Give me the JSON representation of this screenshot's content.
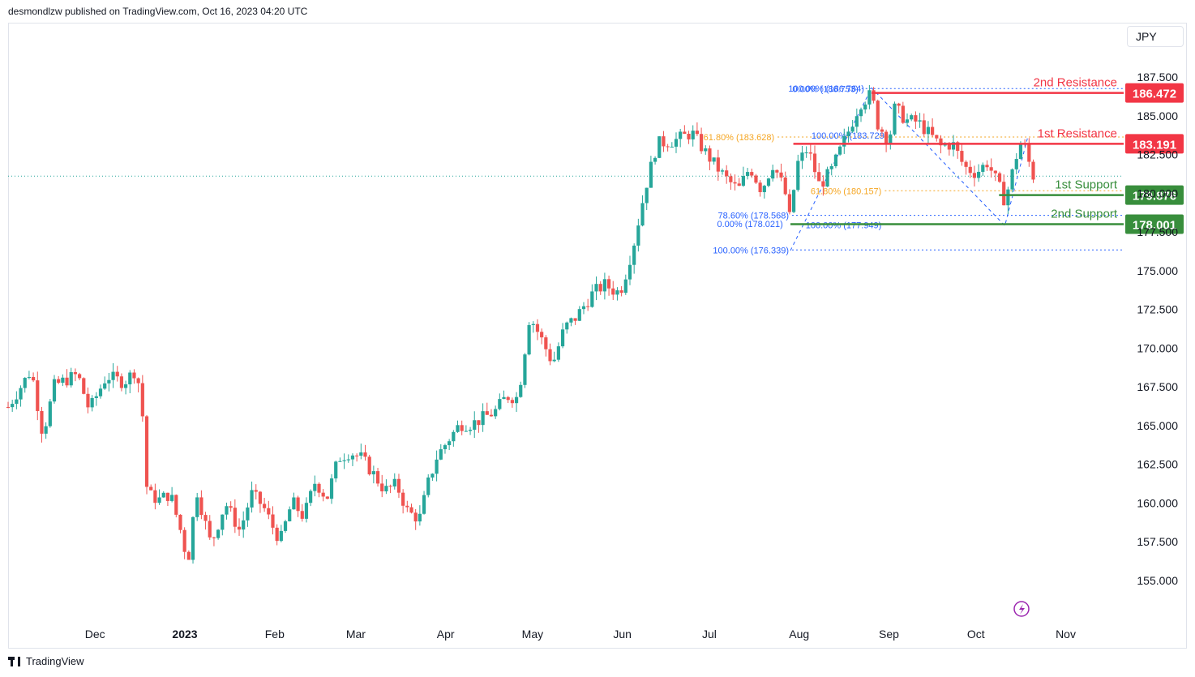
{
  "header": {
    "attribution": "desmondlzw published on TradingView.com, Oct 16, 2023 04:20 UTC"
  },
  "currency": "JPY",
  "footer": {
    "brand": "TradingView"
  },
  "colors": {
    "up": "#26a69a",
    "down": "#ef5350",
    "resistance": "#f23645",
    "support": "#388e3c",
    "fib_blue": "#2962ff",
    "fib_orange": "#f5a623",
    "last_price": "#26a69a"
  },
  "chart_data": {
    "type": "candlestick",
    "title": "",
    "ylim": [
      152.5,
      189.5
    ],
    "y_ticks": [
      "187.500",
      "185.000",
      "182.500",
      "180.000",
      "177.500",
      "175.000",
      "172.500",
      "170.000",
      "167.500",
      "165.000",
      "162.500",
      "160.000",
      "157.500",
      "155.000"
    ],
    "x_ticks": [
      {
        "label": "Dec",
        "day": 30
      },
      {
        "label": "2023",
        "day": 61
      },
      {
        "label": "Feb",
        "day": 92
      },
      {
        "label": "Mar",
        "day": 120
      },
      {
        "label": "Apr",
        "day": 151
      },
      {
        "label": "May",
        "day": 181
      },
      {
        "label": "Jun",
        "day": 212
      },
      {
        "label": "Jul",
        "day": 242
      },
      {
        "label": "Aug",
        "day": 273
      },
      {
        "label": "Sep",
        "day": 304
      },
      {
        "label": "Oct",
        "day": 334
      },
      {
        "label": "Nov",
        "day": 365
      }
    ],
    "x_range_days": [
      0,
      385
    ],
    "key_points": [
      [
        0,
        166.2
      ],
      [
        8,
        168.6
      ],
      [
        12,
        164.4
      ],
      [
        16,
        167.6
      ],
      [
        24,
        168.3
      ],
      [
        28,
        166.0
      ],
      [
        34,
        168.2
      ],
      [
        40,
        167.8
      ],
      [
        44,
        168.6
      ],
      [
        46,
        166.9
      ],
      [
        48,
        160.6
      ],
      [
        52,
        160.2
      ],
      [
        56,
        160.6
      ],
      [
        60,
        157.9
      ],
      [
        62,
        156.1
      ],
      [
        65,
        160.9
      ],
      [
        70,
        157.3
      ],
      [
        75,
        160.0
      ],
      [
        80,
        158.2
      ],
      [
        84,
        160.6
      ],
      [
        88,
        159.8
      ],
      [
        92,
        158.2
      ],
      [
        94,
        157.6
      ],
      [
        98,
        160.1
      ],
      [
        102,
        159.1
      ],
      [
        106,
        161.4
      ],
      [
        110,
        160.3
      ],
      [
        114,
        162.9
      ],
      [
        118,
        163.3
      ],
      [
        122,
        162.9
      ],
      [
        126,
        161.9
      ],
      [
        130,
        160.8
      ],
      [
        134,
        161.2
      ],
      [
        138,
        159.4
      ],
      [
        142,
        159.0
      ],
      [
        145,
        161.3
      ],
      [
        148,
        163.0
      ],
      [
        152,
        164.1
      ],
      [
        156,
        165.1
      ],
      [
        160,
        165.1
      ],
      [
        164,
        165.5
      ],
      [
        168,
        165.9
      ],
      [
        172,
        166.9
      ],
      [
        176,
        166.8
      ],
      [
        180,
        172.1
      ],
      [
        184,
        170.6
      ],
      [
        188,
        169.0
      ],
      [
        192,
        171.3
      ],
      [
        196,
        172.0
      ],
      [
        202,
        173.6
      ],
      [
        206,
        174.1
      ],
      [
        210,
        173.6
      ],
      [
        212,
        174.0
      ],
      [
        216,
        176.8
      ],
      [
        220,
        180.4
      ],
      [
        224,
        183.2
      ],
      [
        230,
        183.4
      ],
      [
        236,
        183.9
      ],
      [
        240,
        182.8
      ],
      [
        244,
        181.8
      ],
      [
        248,
        180.9
      ],
      [
        252,
        180.2
      ],
      [
        256,
        181.7
      ],
      [
        260,
        180.2
      ],
      [
        264,
        181.9
      ],
      [
        268,
        180.2
      ],
      [
        270,
        178.1
      ],
      [
        272,
        181.8
      ],
      [
        276,
        182.9
      ],
      [
        280,
        180.5
      ],
      [
        284,
        181.4
      ],
      [
        290,
        184.0
      ],
      [
        294,
        185.8
      ],
      [
        298,
        186.4
      ],
      [
        300,
        184.5
      ],
      [
        304,
        183.4
      ],
      [
        306,
        185.5
      ],
      [
        310,
        184.7
      ],
      [
        314,
        184.6
      ],
      [
        318,
        183.8
      ],
      [
        322,
        183.0
      ],
      [
        326,
        183.2
      ],
      [
        330,
        181.7
      ],
      [
        334,
        181.3
      ],
      [
        338,
        182.0
      ],
      [
        342,
        180.4
      ],
      [
        344,
        179.5
      ],
      [
        346,
        180.9
      ],
      [
        348,
        182.4
      ],
      [
        350,
        183.5
      ],
      [
        352,
        182.2
      ],
      [
        354,
        181.0
      ]
    ],
    "levels": [
      {
        "label": "2nd Resistance",
        "value": "186.472",
        "kind": "resistance",
        "price": 186.472,
        "start_day": 298
      },
      {
        "label": "1st Resistance",
        "value": "183.191",
        "kind": "resistance",
        "price": 183.191,
        "start_day": 271
      },
      {
        "label": "1st Support",
        "value": "179.876",
        "kind": "support",
        "price": 179.876,
        "start_day": 342
      },
      {
        "label": "2nd Support",
        "value": "178.001",
        "kind": "support",
        "price": 178.001,
        "start_day": 270
      }
    ],
    "last_price": 181.1,
    "fib_labels": [
      {
        "text": "0.00% (186.753)",
        "price": 186.753,
        "day": 294,
        "color": "fib_blue",
        "kind": "line"
      },
      {
        "text": "100.00% (186.764)",
        "price": 186.764,
        "day": 296,
        "color": "fib_blue",
        "kind": "label"
      },
      {
        "text": "61.80% (183.628)",
        "price": 183.628,
        "day": 265,
        "color": "fib_orange",
        "kind": "line"
      },
      {
        "text": "100.00% (183.729)",
        "price": 183.729,
        "day": 304,
        "color": "fib_blue",
        "kind": "label"
      },
      {
        "text": "61.80% (180.157)",
        "price": 180.157,
        "day": 302,
        "color": "fib_orange",
        "kind": "line"
      },
      {
        "text": "78.60% (178.568)",
        "price": 178.568,
        "day": 270,
        "color": "fib_blue",
        "kind": "line"
      },
      {
        "text": "0.00% (178.021)",
        "price": 178.021,
        "day": 268,
        "color": "fib_blue",
        "kind": "label"
      },
      {
        "text": "100.00% (177.949)",
        "price": 177.949,
        "day": 302,
        "color": "fib_blue",
        "kind": "label"
      },
      {
        "text": "100.00% (176.339)",
        "price": 176.339,
        "day": 270,
        "color": "fib_blue",
        "kind": "line"
      }
    ]
  }
}
